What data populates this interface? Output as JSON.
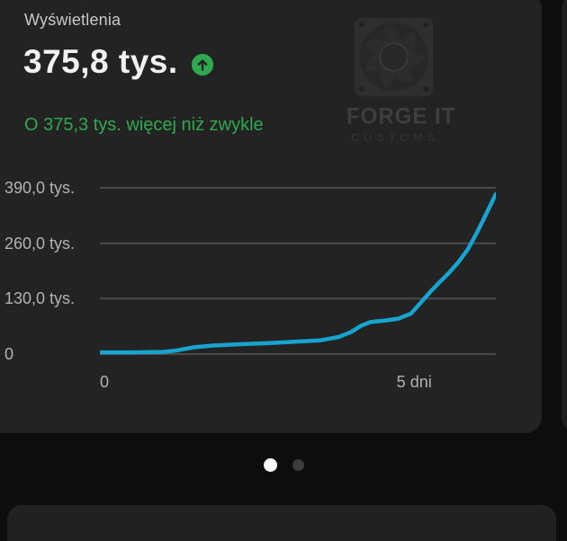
{
  "card": {
    "title": "Wyświetlenia",
    "metric_value": "375,8 tys.",
    "trend_icon": "arrow-up-circle",
    "comparison": "O 375,3 tys. więcej niż zwykle"
  },
  "watermark": {
    "icon": "pc-fan-icon",
    "line1": "FORGE IT",
    "line2": "CUSTOMS"
  },
  "chart_data": {
    "type": "line",
    "title": "Wyświetlenia",
    "unit": "tys.",
    "xlabel": "dni",
    "ylabel": "",
    "xlim": [
      0,
      6.3
    ],
    "ylim": [
      0,
      390
    ],
    "grid": true,
    "legend": false,
    "line_color": "#17a4d0",
    "grid_color": "#4a4a4a",
    "y_ticks": [
      {
        "value": 390,
        "label": "390,0 tys."
      },
      {
        "value": 260,
        "label": "260,0 tys."
      },
      {
        "value": 130,
        "label": "130,0 tys."
      },
      {
        "value": 0,
        "label": "0"
      }
    ],
    "x_ticks": [
      {
        "value": 0,
        "label": "0"
      },
      {
        "value": 5,
        "label": "5 dni"
      }
    ],
    "series": [
      {
        "name": "Wyświetlenia (tys.)",
        "points": [
          [
            0,
            4
          ],
          [
            0.5,
            4
          ],
          [
            1.0,
            5
          ],
          [
            1.2,
            8
          ],
          [
            1.5,
            16
          ],
          [
            1.8,
            20
          ],
          [
            2.2,
            23
          ],
          [
            2.7,
            26
          ],
          [
            3.1,
            29
          ],
          [
            3.5,
            32
          ],
          [
            3.8,
            40
          ],
          [
            4.0,
            52
          ],
          [
            4.15,
            66
          ],
          [
            4.3,
            75
          ],
          [
            4.55,
            79
          ],
          [
            4.75,
            83
          ],
          [
            4.95,
            95
          ],
          [
            5.1,
            120
          ],
          [
            5.25,
            145
          ],
          [
            5.4,
            168
          ],
          [
            5.55,
            190
          ],
          [
            5.7,
            215
          ],
          [
            5.85,
            245
          ],
          [
            6.0,
            285
          ],
          [
            6.1,
            315
          ],
          [
            6.2,
            345
          ],
          [
            6.3,
            375.8
          ]
        ]
      }
    ]
  },
  "pagination": {
    "count": 2,
    "active_index": 0,
    "dots": [
      {
        "active": true
      },
      {
        "active": false
      }
    ]
  },
  "colors": {
    "card_bg": "#232323",
    "page_bg": "#0d0d0d",
    "accent_green": "#2fa94f",
    "line_cyan": "#17a4d0",
    "text_primary": "#f2f2f2",
    "text_secondary": "#c9c9c9",
    "axis_text": "#b3b3b3"
  }
}
